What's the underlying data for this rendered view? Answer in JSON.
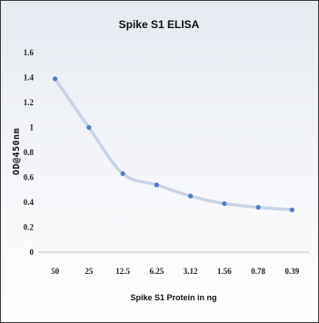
{
  "chart_data": {
    "type": "line",
    "title": "Spike S1 ELISA",
    "xlabel": "Spike S1 Protein in ng",
    "ylabel": "OD@450nm",
    "categories": [
      "50",
      "25",
      "12.5",
      "6.25",
      "3.12",
      "1.56",
      "0.78",
      "0.39"
    ],
    "series": [
      {
        "values": [
          1.39,
          1.0,
          0.63,
          0.54,
          0.45,
          0.39,
          0.36,
          0.34
        ]
      }
    ],
    "ylim": [
      0,
      1.6
    ],
    "yticks": [
      "0",
      "0.2",
      "0.4",
      "0.6",
      "0.8",
      "1",
      "1.2",
      "1.4",
      "1.6"
    ],
    "grid": false,
    "legend": "none",
    "colors": {
      "line": "#c9d3e6",
      "marker": "#4f7fc1",
      "axis": "#c8c8c8"
    }
  }
}
